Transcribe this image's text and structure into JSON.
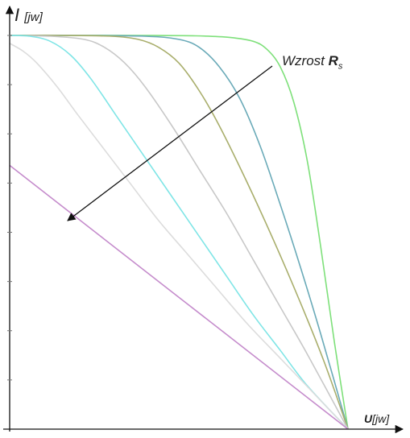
{
  "chart_data": {
    "type": "line",
    "title": "",
    "ylabel": {
      "main": "I",
      "unit": "[jw]"
    },
    "xlabel": {
      "main": "U",
      "unit": "[jw]"
    },
    "annotation": {
      "text": "Wzrost ",
      "symbol": "R",
      "subscript": "s"
    },
    "xlim": [
      0,
      1
    ],
    "ylim": [
      0,
      1
    ],
    "grid": false,
    "legend": "none",
    "series": [
      {
        "color": "#7ee07a",
        "x": [
          0,
          0.2,
          0.4,
          0.55,
          0.65,
          0.72,
          0.76,
          0.8,
          0.84,
          0.88,
          0.92,
          0.96,
          1.0
        ],
        "y": [
          1.0,
          1.0,
          1.0,
          0.999,
          0.995,
          0.985,
          0.965,
          0.92,
          0.83,
          0.68,
          0.46,
          0.22,
          0.0
        ]
      },
      {
        "color": "#6aaab8",
        "x": [
          0,
          0.2,
          0.4,
          0.5,
          0.56,
          0.62,
          0.68,
          0.74,
          0.8,
          0.86,
          0.92,
          1.0
        ],
        "y": [
          1.0,
          1.0,
          0.998,
          0.99,
          0.97,
          0.92,
          0.84,
          0.72,
          0.57,
          0.41,
          0.24,
          0.0
        ]
      },
      {
        "color": "#a9ae6c",
        "x": [
          0,
          0.15,
          0.3,
          0.38,
          0.44,
          0.5,
          0.56,
          0.62,
          0.7,
          0.78,
          0.86,
          0.93,
          1.0
        ],
        "y": [
          1.0,
          1.0,
          0.998,
          0.99,
          0.97,
          0.93,
          0.86,
          0.77,
          0.63,
          0.48,
          0.32,
          0.17,
          0.0
        ]
      },
      {
        "color": "#c8c8c8",
        "x": [
          0,
          0.12,
          0.22,
          0.28,
          0.34,
          0.4,
          0.48,
          0.56,
          0.64,
          0.72,
          0.8,
          0.88,
          1.0
        ],
        "y": [
          1.0,
          0.998,
          0.99,
          0.97,
          0.93,
          0.87,
          0.77,
          0.66,
          0.55,
          0.43,
          0.31,
          0.19,
          0.0
        ]
      },
      {
        "color": "#7fe5e6",
        "x": [
          0,
          0.06,
          0.12,
          0.18,
          0.24,
          0.32,
          0.4,
          0.48,
          0.56,
          0.64,
          0.72,
          0.8,
          0.88,
          1.0
        ],
        "y": [
          1.0,
          0.998,
          0.985,
          0.95,
          0.89,
          0.79,
          0.69,
          0.59,
          0.49,
          0.39,
          0.29,
          0.2,
          0.11,
          0.0
        ]
      },
      {
        "color": "#dcdcdc",
        "x": [
          0,
          0.04,
          0.08,
          0.14,
          0.2,
          0.28,
          0.36,
          0.44,
          0.52,
          0.6,
          0.7,
          0.8,
          0.9,
          1.0
        ],
        "y": [
          0.98,
          0.96,
          0.93,
          0.87,
          0.8,
          0.71,
          0.62,
          0.53,
          0.45,
          0.37,
          0.27,
          0.18,
          0.09,
          0.0
        ]
      },
      {
        "color": "#c58ccc",
        "x": [
          0,
          1.0
        ],
        "y": [
          0.67,
          0.0
        ]
      }
    ]
  }
}
